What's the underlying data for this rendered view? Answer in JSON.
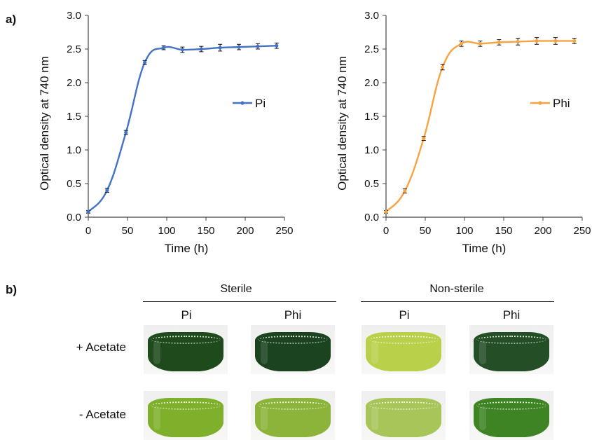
{
  "panels": {
    "a": "a)",
    "b": "b)"
  },
  "chart_data": [
    {
      "type": "line",
      "x": [
        0,
        24,
        48,
        72,
        96,
        120,
        144,
        168,
        192,
        216,
        240
      ],
      "series": [
        {
          "name": "Pi",
          "values": [
            0.08,
            0.4,
            1.26,
            2.3,
            2.52,
            2.49,
            2.5,
            2.52,
            2.53,
            2.54,
            2.55
          ],
          "errors": [
            0.02,
            0.03,
            0.03,
            0.03,
            0.03,
            0.04,
            0.04,
            0.05,
            0.04,
            0.04,
            0.04
          ],
          "color": "#4472c4"
        }
      ],
      "xlabel": "Time (h)",
      "ylabel": "Optical density at 740 nm",
      "xlim": [
        0,
        250
      ],
      "ylim": [
        0,
        3.0
      ],
      "xticks": [
        "0",
        "50",
        "100",
        "150",
        "200",
        "250"
      ],
      "yticks": [
        "0.0",
        "0.5",
        "1.0",
        "1.5",
        "2.0",
        "2.5",
        "3.0"
      ],
      "legend": "right",
      "grid": false
    },
    {
      "type": "line",
      "x": [
        0,
        24,
        48,
        72,
        96,
        120,
        144,
        168,
        192,
        216,
        240
      ],
      "series": [
        {
          "name": "Phi",
          "values": [
            0.08,
            0.39,
            1.17,
            2.23,
            2.58,
            2.58,
            2.6,
            2.61,
            2.62,
            2.62,
            2.62
          ],
          "errors": [
            0.02,
            0.03,
            0.03,
            0.04,
            0.04,
            0.04,
            0.04,
            0.05,
            0.05,
            0.05,
            0.04
          ],
          "color": "#f7a341"
        }
      ],
      "xlabel": "Time (h)",
      "ylabel": "Optical density at 740 nm",
      "xlim": [
        0,
        250
      ],
      "ylim": [
        0,
        3.0
      ],
      "xticks": [
        "0",
        "50",
        "100",
        "150",
        "200",
        "250"
      ],
      "yticks": [
        "0.0",
        "0.5",
        "1.0",
        "1.5",
        "2.0",
        "2.5",
        "3.0"
      ],
      "legend": "right",
      "grid": false
    }
  ],
  "photo_grid": {
    "groups": [
      "Sterile",
      "Non-sterile"
    ],
    "columns": [
      "Pi",
      "Phi",
      "Pi",
      "Phi"
    ],
    "rows": [
      "+ Acetate",
      "- Acetate"
    ],
    "culture_colors": [
      [
        "#1e4a1c",
        "#1b4320",
        "#b9d14a",
        "#244e26"
      ],
      [
        "#7fb02c",
        "#8cb43a",
        "#a8c55a",
        "#3f8424"
      ]
    ]
  }
}
